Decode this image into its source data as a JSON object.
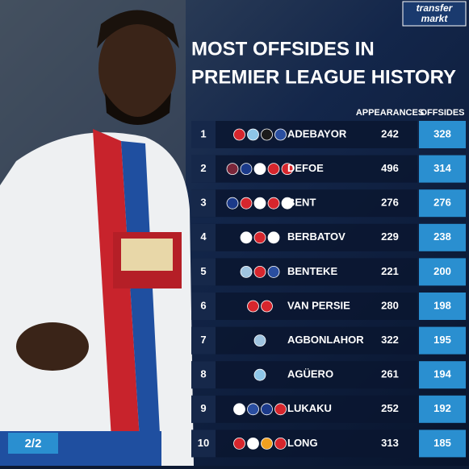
{
  "logo": {
    "line1": "transfer",
    "line2": "markt"
  },
  "header": {
    "title_line1": "MOST OFFSIDES IN",
    "title_line2": "PREMIER LEAGUE HISTORY"
  },
  "page_indicator": "2/2",
  "table": {
    "columns": [
      "APPEARANCES",
      "OFFSIDES"
    ],
    "rows": [
      [
        "1",
        "ADEBAYOR",
        "242",
        "328"
      ],
      [
        "2",
        "DEFOE",
        "496",
        "314"
      ],
      [
        "3",
        "BENT",
        "276",
        "276"
      ],
      [
        "4",
        "BERBATOV",
        "229",
        "238"
      ],
      [
        "5",
        "BENTEKE",
        "221",
        "200"
      ],
      [
        "6",
        "VAN PERSIE",
        "280",
        "198"
      ],
      [
        "7",
        "AGBONLAHOR",
        "322",
        "195"
      ],
      [
        "8",
        "AGÜERO",
        "261",
        "194"
      ],
      [
        "9",
        "LUKAKU",
        "252",
        "192"
      ],
      [
        "10",
        "LONG",
        "313",
        "185"
      ]
    ]
  }
}
